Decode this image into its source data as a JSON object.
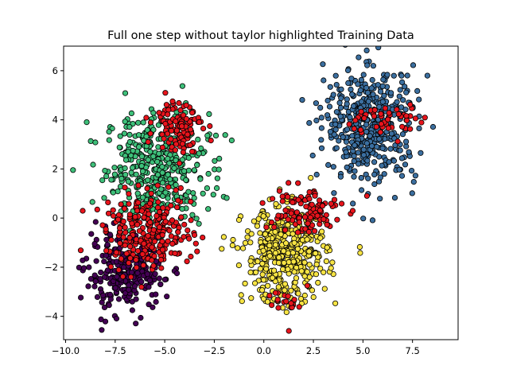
{
  "chart_data": {
    "type": "scatter",
    "title": "Full one step without taylor highlighted Training Data",
    "xlabel": "",
    "ylabel": "",
    "xlim": [
      -10.1,
      9.8
    ],
    "ylim": [
      -4.95,
      7.0
    ],
    "xticks": [
      -10.0,
      -7.5,
      -5.0,
      -2.5,
      0.0,
      2.5,
      5.0,
      7.5
    ],
    "xtick_labels": [
      "−10.0",
      "−7.5",
      "−5.0",
      "−2.5",
      "0.0",
      "2.5",
      "5.0",
      "7.5"
    ],
    "yticks": [
      -4,
      -2,
      0,
      2,
      4,
      6
    ],
    "ytick_labels": [
      "−4",
      "−2",
      "0",
      "2",
      "4",
      "6"
    ],
    "grid": false,
    "legend": "none",
    "marker_edge_color": "#000000",
    "clusters": [
      {
        "color": "#3ec07a",
        "center": [
          -5.4,
          2.1
        ],
        "spread": [
          1.3,
          1.1
        ],
        "count": 420
      },
      {
        "color": "#440154",
        "center": [
          -7.0,
          -2.3
        ],
        "spread": [
          1.0,
          0.75
        ],
        "count": 260
      },
      {
        "color": "#3b6fa0",
        "center": [
          5.4,
          3.8
        ],
        "spread": [
          1.15,
          1.15
        ],
        "count": 460
      },
      {
        "color": "#f7e444",
        "center": [
          1.1,
          -1.5
        ],
        "spread": [
          1.05,
          0.95
        ],
        "count": 440
      }
    ],
    "highlighted": [
      {
        "color": "#e8141c",
        "center": [
          -5.8,
          -0.6
        ],
        "spread": [
          1.1,
          0.75
        ],
        "count": 260
      },
      {
        "color": "#e8141c",
        "center": [
          -4.3,
          3.8
        ],
        "spread": [
          0.6,
          0.55
        ],
        "count": 110
      },
      {
        "color": "#e8141c",
        "center": [
          1.9,
          0.3
        ],
        "spread": [
          1.0,
          0.5
        ],
        "count": 110
      },
      {
        "color": "#e8141c",
        "center": [
          6.2,
          4.0
        ],
        "spread": [
          0.9,
          0.35
        ],
        "count": 45
      },
      {
        "color": "#e8141c",
        "center": [
          1.5,
          -3.5
        ],
        "spread": [
          0.7,
          0.4
        ],
        "count": 20
      }
    ]
  }
}
